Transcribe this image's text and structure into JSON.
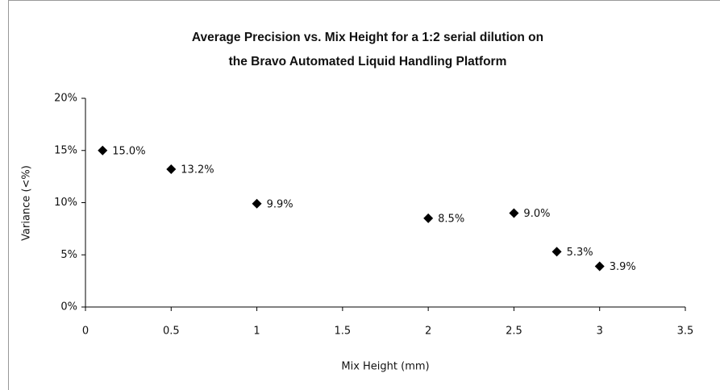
{
  "chart_data": {
    "type": "scatter",
    "title": [
      "Average Precision vs. Mix Height for a 1:2 serial dilution on",
      "the Bravo Automated Liquid Handling Platform"
    ],
    "x_label": "Mix Height (mm)",
    "y_label": "Variance (<%)",
    "x": [
      0.1,
      0.5,
      1,
      2,
      2.5,
      2.75,
      3
    ],
    "values": [
      15.0,
      13.2,
      9.9,
      8.5,
      9.0,
      5.3,
      3.9
    ],
    "value_labels": [
      "15.0%",
      "13.2%",
      "9.9%",
      "8.5%",
      "9.0%",
      "5.3%",
      "3.9%"
    ],
    "color": "#000000",
    "xlim": [
      0,
      3.5
    ],
    "xticks": [
      0,
      0.5,
      1,
      1.5,
      2,
      2.5,
      3,
      3.5
    ],
    "ylim": [
      0,
      20
    ],
    "yticks": [
      {
        "value": 0,
        "label": "0%"
      },
      {
        "value": 5,
        "label": "5%"
      },
      {
        "value": 10,
        "label": "10%"
      },
      {
        "value": 15,
        "label": "15%"
      },
      {
        "value": 20,
        "label": "20%"
      }
    ],
    "grid": false
  }
}
